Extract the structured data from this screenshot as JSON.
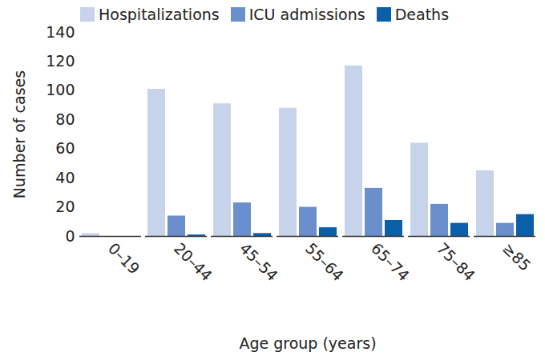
{
  "chart_data": {
    "type": "bar",
    "categories": [
      "0–19",
      "20–44",
      "45–54",
      "55–64",
      "65–74",
      "75–84",
      "≥85"
    ],
    "series": [
      {
        "name": "Hospitalizations",
        "color": "#c6d3ea",
        "values": [
          2,
          101,
          91,
          88,
          117,
          64,
          45
        ]
      },
      {
        "name": "ICU admissions",
        "color": "#6a8fcc",
        "values": [
          0,
          14,
          23,
          20,
          33,
          22,
          9
        ]
      },
      {
        "name": "Deaths",
        "color": "#0b5ea8",
        "values": [
          0,
          1,
          2,
          6,
          11,
          9,
          15
        ]
      }
    ],
    "xlabel": "Age group (years)",
    "ylabel": "Number of cases",
    "ylim": [
      0,
      140
    ],
    "yticks": [
      0,
      20,
      40,
      60,
      80,
      100,
      120,
      140
    ],
    "legend": "top",
    "grid": false
  }
}
